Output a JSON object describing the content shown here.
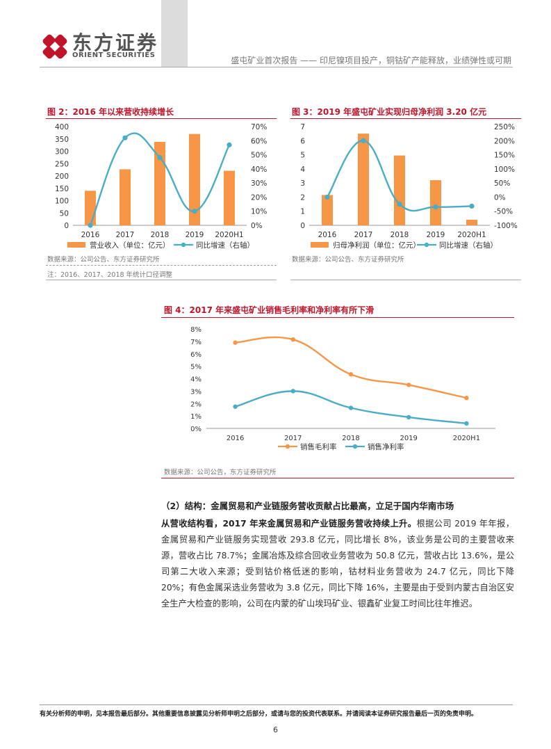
{
  "header": {
    "logo_cn": "东方证券",
    "logo_en": "ORIENT SECURITIES",
    "report_title": "盛屯矿业首次报告 —— 印尼镍项目投产，铜钴矿产能释放，业绩弹性或可期",
    "logo_colors": {
      "red": "#c0142a",
      "grey": "#555555"
    }
  },
  "fig2": {
    "title": "图 2：2016 年以来营收持续增长",
    "source": "数据来源：公司公告、东方证券研究所",
    "note": "注：2016、2017、2018 年统计口径调整",
    "chart_data": {
      "type": "bar+line",
      "categories": [
        "2016",
        "2017",
        "2018",
        "2019",
        "2020H1"
      ],
      "series": [
        {
          "name": "营业收入（单位：亿元）",
          "kind": "bar",
          "axis": "left",
          "color": "#f79646",
          "values": [
            140,
            227,
            338,
            370,
            221
          ]
        },
        {
          "name": "同比增速（右轴）",
          "kind": "line",
          "axis": "right",
          "color": "#4bacc6",
          "values": [
            0,
            62,
            48,
            10,
            57
          ]
        }
      ],
      "y_left": {
        "min": 0,
        "max": 400,
        "ticks": [
          "0",
          "50",
          "100",
          "150",
          "200",
          "250",
          "300",
          "350",
          "400"
        ]
      },
      "y_right": {
        "min": 0,
        "max": 70,
        "ticks": [
          "0%",
          "10%",
          "20%",
          "30%",
          "40%",
          "50%",
          "60%",
          "70%"
        ]
      },
      "legend_position": "bottom"
    }
  },
  "fig3": {
    "title": "图 3：2019 年盛屯矿业实现归母净利润 3.20 亿元",
    "source": "数据来源：公司公告、东方证券研究所",
    "chart_data": {
      "type": "bar+line",
      "categories": [
        "2016",
        "2017",
        "2018",
        "2019",
        "2020H1"
      ],
      "series": [
        {
          "name": "归母净利润（单位：亿元）",
          "kind": "bar",
          "axis": "left",
          "color": "#f79646",
          "values": [
            2.15,
            6.5,
            4.95,
            3.2,
            0.4
          ]
        },
        {
          "name": "同比增速（右轴）",
          "kind": "line",
          "axis": "right",
          "color": "#4bacc6",
          "values": [
            0,
            200,
            -25,
            -35,
            -32
          ]
        }
      ],
      "y_left": {
        "min": 0,
        "max": 7,
        "ticks": [
          "0",
          "1",
          "2",
          "3",
          "4",
          "5",
          "6",
          "7"
        ]
      },
      "y_right": {
        "min": -100,
        "max": 250,
        "ticks": [
          "-100%",
          "-50%",
          "0%",
          "50%",
          "100%",
          "150%",
          "200%",
          "250%"
        ]
      },
      "legend_position": "bottom"
    }
  },
  "fig4": {
    "title": "图 4：2017 年来盛屯矿业销售毛利率和净利率有所下滑",
    "source": "数据来源：公司公告，东方证券研究所",
    "chart_data": {
      "type": "line",
      "categories": [
        "2016",
        "2017",
        "2018",
        "2019",
        "2020H1"
      ],
      "series": [
        {
          "name": "销售毛利率",
          "color": "#f79646",
          "values": [
            6.9,
            7.15,
            4.35,
            3.5,
            2.45
          ]
        },
        {
          "name": "销售净利率",
          "color": "#4bacc6",
          "values": [
            1.75,
            3.0,
            1.65,
            0.9,
            0.4
          ]
        }
      ],
      "y": {
        "min": 0,
        "max": 8,
        "ticks": [
          "0%",
          "1%",
          "2%",
          "3%",
          "4%",
          "5%",
          "6%",
          "7%",
          "8%"
        ]
      },
      "legend_position": "bottom"
    }
  },
  "body": {
    "subsection": "（2）结构：金属贸易和产业链服务营收贡献占比最高，立足于国内华南市场",
    "lead": "从营收结构看，2017 年来金属贸易和产业链服务营收持续上升。",
    "text": "根据公司 2019 年年报，金属贸易和产业链服务实现营收 293.8 亿元，同比增长 8%，该业务是公司的主要营收来源，营收占比 78.7%；金属冶炼及综合回收业务营收为 50.8 亿元，营收占比 13.6%，是公司第二大收入来源；受到钴价格低迷的影响，钴材料业务营收为 24.7 亿元，同比下降 20%；有色金属采选业务营收为 3.8 亿元，同比下降 16%，主要是由于受到内蒙古自治区安全生产大检查的影响，公司在内蒙的矿山埃玛矿业、银鑫矿业复工时间比往年推迟。"
  },
  "footer": {
    "disclaimer": "有关分析师的申明，见本报告最后部分。其他重要信息披露见分析师申明之后部分，或请与您的投资代表联系。并请阅读本证券研究报告最后一页的免责申明。",
    "page_number": "6"
  }
}
